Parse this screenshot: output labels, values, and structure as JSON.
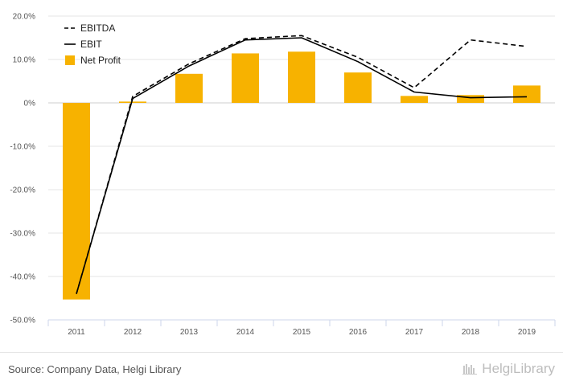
{
  "chart_data": {
    "type": "bar+line",
    "categories": [
      "2011",
      "2012",
      "2013",
      "2014",
      "2015",
      "2016",
      "2017",
      "2018",
      "2019"
    ],
    "series": [
      {
        "name": "EBITDA",
        "kind": "line",
        "style": "dashed",
        "color": "#000000",
        "values": [
          -44.0,
          1.5,
          9.0,
          14.8,
          15.5,
          10.5,
          3.5,
          14.5,
          13.0
        ]
      },
      {
        "name": "EBIT",
        "kind": "line",
        "style": "solid",
        "color": "#000000",
        "values": [
          -44.0,
          1.0,
          8.5,
          14.5,
          15.0,
          9.5,
          2.5,
          1.2,
          1.4
        ]
      },
      {
        "name": "Net Profit",
        "kind": "bar",
        "color": "#f7b200",
        "values": [
          -45.3,
          0.3,
          6.7,
          11.4,
          11.8,
          7.0,
          1.6,
          1.8,
          4.0
        ]
      }
    ],
    "ylim": [
      -50,
      20
    ],
    "yticks": [
      20,
      10,
      0,
      -10,
      -20,
      -30,
      -40,
      -50
    ],
    "ytick_labels": [
      "20.0%",
      "10.0%",
      "0%",
      "-10.0%",
      "-20.0%",
      "-30.0%",
      "-40.0%",
      "-50.0%"
    ],
    "grid": true,
    "legend_position": "top-left"
  },
  "footer": {
    "source": "Source: Company Data, Helgi Library",
    "brand": "HelgiLibrary"
  }
}
